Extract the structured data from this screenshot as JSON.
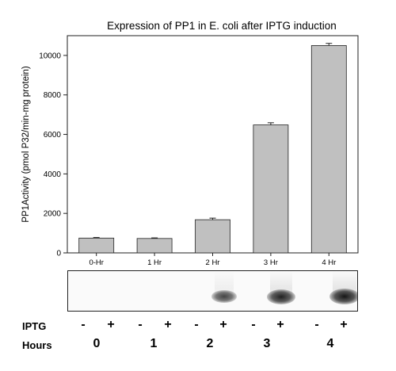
{
  "chart_data": {
    "type": "bar",
    "title": "Expression of PP1 in E. coli after IPTG induction",
    "ylabel": "PP1Activity (pmol P32/min-mg protein)",
    "xlabel": "",
    "categories": [
      "0-Hr",
      "1 Hr",
      "2 Hr",
      "3 Hr",
      "4 Hr"
    ],
    "values": [
      750,
      730,
      1680,
      6480,
      10500
    ],
    "errors": [
      30,
      30,
      80,
      110,
      110
    ],
    "ylim": [
      0,
      11000
    ],
    "yticks": [
      0,
      2000,
      4000,
      6000,
      8000,
      10000
    ],
    "bar_color": "#c0c0c0",
    "grid": false
  },
  "blot": {
    "row_labels": {
      "iptg": "IPTG",
      "hours": "Hours"
    },
    "iptg_signs": [
      "-",
      "+",
      "-",
      "+",
      "-",
      "+",
      "-",
      "+",
      "-",
      "+"
    ],
    "hours": [
      "0",
      "1",
      "2",
      "3",
      "4"
    ],
    "band_intensity": [
      0,
      0,
      0,
      0,
      0,
      0.55,
      0,
      0.9,
      0,
      1.0
    ]
  }
}
